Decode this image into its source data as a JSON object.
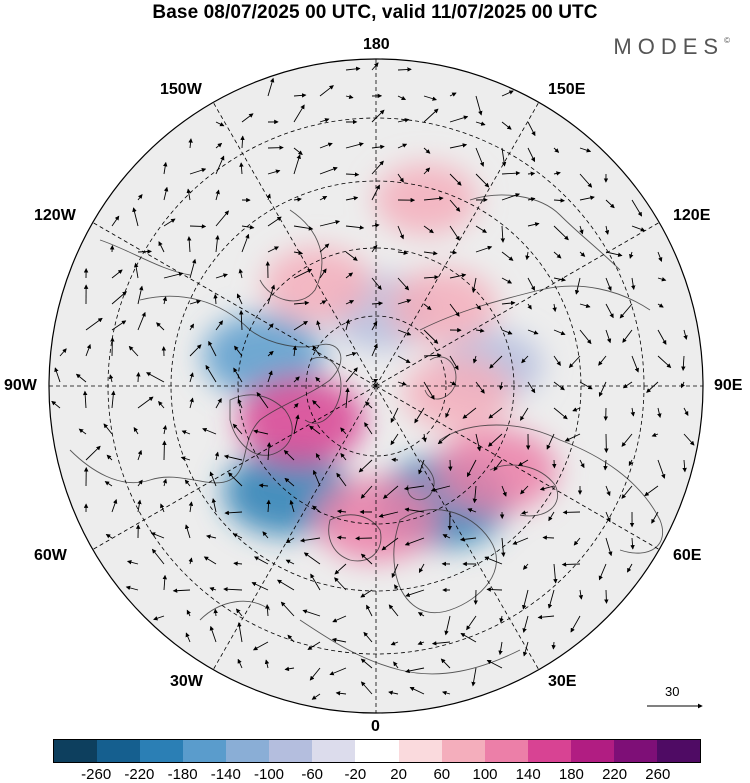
{
  "title": "Base 08/07/2025 00 UTC, valid 11/07/2025 00 UTC",
  "logo": {
    "text": "MODES",
    "mark": "©"
  },
  "longitude_labels": {
    "top": "180",
    "bottom": "0",
    "left": "90W",
    "right": "90E",
    "nw": "150W",
    "wnw": "120W",
    "sw": "60W",
    "ssw": "30W",
    "ne": "150E",
    "ene": "120E",
    "se": "60E",
    "sse": "30E"
  },
  "reference_vector": {
    "label": "30"
  },
  "legend": {
    "ticks": [
      "-260",
      "-220",
      "-180",
      "-140",
      "-100",
      "-60",
      "-20",
      "20",
      "60",
      "100",
      "140",
      "180",
      "220",
      "260"
    ],
    "colors": [
      "#0d3f5e",
      "#155f8f",
      "#2b7fb5",
      "#5a9ccc",
      "#8aaed6",
      "#b4bede",
      "#dcdcec",
      "#ffffff",
      "#fadadd",
      "#f4aebc",
      "#ec7fa8",
      "#d84393",
      "#b11d82",
      "#7e0f77",
      "#4f0b64"
    ]
  },
  "map": {
    "projection": "north polar stereographic",
    "field": "height anomaly with wind vectors",
    "anomaly_centres": [
      {
        "sign": "neg",
        "strength": 0.9,
        "lon": 30,
        "lat": 58
      },
      {
        "sign": "neg",
        "strength": 0.8,
        "lon": -40,
        "lat": 57
      },
      {
        "sign": "neg",
        "strength": 0.7,
        "lon": -105,
        "lat": 62
      },
      {
        "sign": "neg",
        "strength": 0.5,
        "lon": 175,
        "lat": 72
      },
      {
        "sign": "neg",
        "strength": 0.4,
        "lon": 100,
        "lat": 62
      },
      {
        "sign": "pos",
        "strength": 0.8,
        "lon": -65,
        "lat": 70
      },
      {
        "sign": "pos",
        "strength": 0.7,
        "lon": 0,
        "lat": 58
      },
      {
        "sign": "pos",
        "strength": 0.7,
        "lon": 55,
        "lat": 55
      },
      {
        "sign": "pos",
        "strength": 0.5,
        "lon": 85,
        "lat": 70
      },
      {
        "sign": "pos",
        "strength": 0.5,
        "lon": 140,
        "lat": 65
      },
      {
        "sign": "pos",
        "strength": 0.5,
        "lon": -150,
        "lat": 62
      },
      {
        "sign": "pos",
        "strength": 0.4,
        "lon": 165,
        "lat": 45
      }
    ]
  }
}
